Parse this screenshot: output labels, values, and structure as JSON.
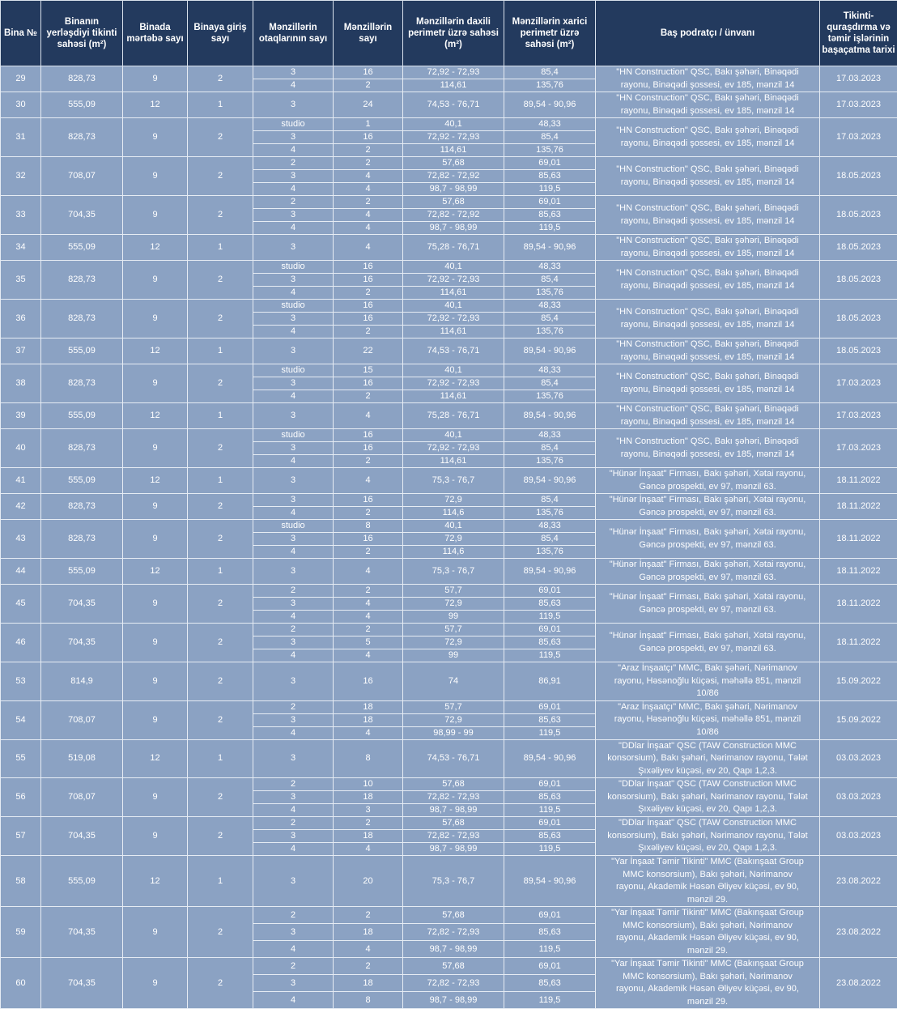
{
  "headers": {
    "no": "Bina №",
    "area": "Binanın yerləşdiyi tikinti sahəsi (m²)",
    "floors": "Binada mərtəbə sayı",
    "entrances": "Binaya giriş sayı",
    "rooms": "Mənzillərin otaqlarının sayı",
    "count": "Mənzillərin sayı",
    "inner": "Mənzillərin daxili perimetr üzrə sahəsi (m²)",
    "outer": "Mənzillərin xarici perimetr üzrə sahəsi (m²)",
    "contractor": "Baş podratçı / ünvanı",
    "date": "Tikinti-quraşdırma və təmir işlərinin başaçatma tarixi"
  },
  "colors": {
    "header_bg": "#233a5e",
    "row_bg": "#8ba2c3",
    "text": "#ffffff"
  },
  "buildings": [
    {
      "no": "29",
      "area": "828,73",
      "floors": "9",
      "entrances": "2",
      "units": [
        [
          "3",
          "16",
          "72,92 - 72,93",
          "85,4"
        ],
        [
          "4",
          "2",
          "114,61",
          "135,76"
        ]
      ],
      "contractor": "\"HN Construction\" QSC, Bakı şəhəri, Binəqədi rayonu, Binəqədi şossesi, ev 185, mənzil 14",
      "date": "17.03.2023"
    },
    {
      "no": "30",
      "area": "555,09",
      "floors": "12",
      "entrances": "1",
      "units": [
        [
          "3",
          "24",
          "74,53 - 76,71",
          "89,54 - 90,96"
        ]
      ],
      "contractor": "\"HN Construction\" QSC, Bakı şəhəri, Binəqədi rayonu, Binəqədi şossesi, ev 185, mənzil 14",
      "date": "17.03.2023"
    },
    {
      "no": "31",
      "area": "828,73",
      "floors": "9",
      "entrances": "2",
      "units": [
        [
          "studio",
          "1",
          "40,1",
          "48,33"
        ],
        [
          "3",
          "16",
          "72,92 - 72,93",
          "85,4"
        ],
        [
          "4",
          "2",
          "114,61",
          "135,76"
        ]
      ],
      "contractor": "\"HN Construction\" QSC, Bakı şəhəri, Binəqədi rayonu, Binəqədi şossesi, ev 185, mənzil 14",
      "date": "17.03.2023"
    },
    {
      "no": "32",
      "area": "708,07",
      "floors": "9",
      "entrances": "2",
      "units": [
        [
          "2",
          "2",
          "57,68",
          "69,01"
        ],
        [
          "3",
          "4",
          "72,82 - 72,92",
          "85,63"
        ],
        [
          "4",
          "4",
          "98,7 - 98,99",
          "119,5"
        ]
      ],
      "contractor": "\"HN Construction\" QSC, Bakı şəhəri, Binəqədi rayonu, Binəqədi şossesi, ev 185, mənzil 14",
      "date": "18.05.2023"
    },
    {
      "no": "33",
      "area": "704,35",
      "floors": "9",
      "entrances": "2",
      "units": [
        [
          "2",
          "2",
          "57,68",
          "69,01"
        ],
        [
          "3",
          "4",
          "72,82 - 72,92",
          "85,63"
        ],
        [
          "4",
          "4",
          "98,7 - 98,99",
          "119,5"
        ]
      ],
      "contractor": "\"HN Construction\" QSC, Bakı şəhəri, Binəqədi rayonu, Binəqədi şossesi, ev 185, mənzil 14",
      "date": "18.05.2023"
    },
    {
      "no": "34",
      "area": "555,09",
      "floors": "12",
      "entrances": "1",
      "units": [
        [
          "3",
          "4",
          "75,28 - 76,71",
          "89,54 - 90,96"
        ]
      ],
      "contractor": "\"HN Construction\" QSC, Bakı şəhəri, Binəqədi rayonu, Binəqədi şossesi, ev 185, mənzil 14",
      "date": "18.05.2023"
    },
    {
      "no": "35",
      "area": "828,73",
      "floors": "9",
      "entrances": "2",
      "units": [
        [
          "studio",
          "16",
          "40,1",
          "48,33"
        ],
        [
          "3",
          "16",
          "72,92 - 72,93",
          "85,4"
        ],
        [
          "4",
          "2",
          "114,61",
          "135,76"
        ]
      ],
      "contractor": "\"HN Construction\" QSC, Bakı şəhəri, Binəqədi rayonu, Binəqədi şossesi, ev 185, mənzil 14",
      "date": "18.05.2023"
    },
    {
      "no": "36",
      "area": "828,73",
      "floors": "9",
      "entrances": "2",
      "units": [
        [
          "studio",
          "16",
          "40,1",
          "48,33"
        ],
        [
          "3",
          "16",
          "72,92 - 72,93",
          "85,4"
        ],
        [
          "4",
          "2",
          "114,61",
          "135,76"
        ]
      ],
      "contractor": "\"HN Construction\" QSC, Bakı şəhəri, Binəqədi rayonu, Binəqədi şossesi, ev 185, mənzil 14",
      "date": "18.05.2023"
    },
    {
      "no": "37",
      "area": "555,09",
      "floors": "12",
      "entrances": "1",
      "units": [
        [
          "3",
          "22",
          "74,53 - 76,71",
          "89,54 - 90,96"
        ]
      ],
      "contractor": "\"HN Construction\" QSC, Bakı şəhəri, Binəqədi rayonu, Binəqədi şossesi, ev 185, mənzil 14",
      "date": "18.05.2023"
    },
    {
      "no": "38",
      "area": "828,73",
      "floors": "9",
      "entrances": "2",
      "units": [
        [
          "studio",
          "15",
          "40,1",
          "48,33"
        ],
        [
          "3",
          "16",
          "72,92 - 72,93",
          "85,4"
        ],
        [
          "4",
          "2",
          "114,61",
          "135,76"
        ]
      ],
      "contractor": "\"HN Construction\" QSC, Bakı şəhəri, Binəqədi rayonu, Binəqədi şossesi, ev 185, mənzil 14",
      "date": "17.03.2023"
    },
    {
      "no": "39",
      "area": "555,09",
      "floors": "12",
      "entrances": "1",
      "units": [
        [
          "3",
          "4",
          "75,28 - 76,71",
          "89,54 - 90,96"
        ]
      ],
      "contractor": "\"HN Construction\" QSC, Bakı şəhəri, Binəqədi rayonu, Binəqədi şossesi, ev 185, mənzil 14",
      "date": "17.03.2023"
    },
    {
      "no": "40",
      "area": "828,73",
      "floors": "9",
      "entrances": "2",
      "units": [
        [
          "studio",
          "16",
          "40,1",
          "48,33"
        ],
        [
          "3",
          "16",
          "72,92 - 72,93",
          "85,4"
        ],
        [
          "4",
          "2",
          "114,61",
          "135,76"
        ]
      ],
      "contractor": "\"HN Construction\" QSC, Bakı şəhəri, Binəqədi rayonu, Binəqədi şossesi, ev 185, mənzil 14",
      "date": "17.03.2023"
    },
    {
      "no": "41",
      "area": "555,09",
      "floors": "12",
      "entrances": "1",
      "units": [
        [
          "3",
          "4",
          "75,3 - 76,7",
          "89,54 - 90,96"
        ]
      ],
      "contractor": "\"Hünər İnşaat\" Firması, Bakı şəhəri, Xətai rayonu, Gəncə prospekti, ev 97, mənzil 63.",
      "date": "18.11.2022"
    },
    {
      "no": "42",
      "area": "828,73",
      "floors": "9",
      "entrances": "2",
      "units": [
        [
          "3",
          "16",
          "72,9",
          "85,4"
        ],
        [
          "4",
          "2",
          "114,6",
          "135,76"
        ]
      ],
      "contractor": "\"Hünər İnşaat\" Firması, Bakı şəhəri, Xətai rayonu, Gəncə prospekti, ev 97, mənzil 63.",
      "date": "18.11.2022"
    },
    {
      "no": "43",
      "area": "828,73",
      "floors": "9",
      "entrances": "2",
      "units": [
        [
          "studio",
          "8",
          "40,1",
          "48,33"
        ],
        [
          "3",
          "16",
          "72,9",
          "85,4"
        ],
        [
          "4",
          "2",
          "114,6",
          "135,76"
        ]
      ],
      "contractor": "\"Hünər İnşaat\" Firması, Bakı şəhəri, Xətai rayonu, Gəncə prospekti, ev 97, mənzil 63.",
      "date": "18.11.2022"
    },
    {
      "no": "44",
      "area": "555,09",
      "floors": "12",
      "entrances": "1",
      "units": [
        [
          "3",
          "4",
          "75,3 - 76,7",
          "89,54 - 90,96"
        ]
      ],
      "contractor": "\"Hünər İnşaat\" Firması, Bakı şəhəri, Xətai rayonu, Gəncə prospekti, ev 97, mənzil 63.",
      "date": "18.11.2022"
    },
    {
      "no": "45",
      "area": "704,35",
      "floors": "9",
      "entrances": "2",
      "units": [
        [
          "2",
          "2",
          "57,7",
          "69,01"
        ],
        [
          "3",
          "4",
          "72,9",
          "85,63"
        ],
        [
          "4",
          "4",
          "99",
          "119,5"
        ]
      ],
      "contractor": "\"Hünər İnşaat\" Firması, Bakı şəhəri, Xətai rayonu, Gəncə prospekti, ev 97, mənzil 63.",
      "date": "18.11.2022"
    },
    {
      "no": "46",
      "area": "704,35",
      "floors": "9",
      "entrances": "2",
      "units": [
        [
          "2",
          "2",
          "57,7",
          "69,01"
        ],
        [
          "3",
          "5",
          "72,9",
          "85,63"
        ],
        [
          "4",
          "4",
          "99",
          "119,5"
        ]
      ],
      "contractor": "\"Hünər İnşaat\" Firması, Bakı şəhəri, Xətai rayonu, Gəncə prospekti, ev 97, mənzil 63.",
      "date": "18.11.2022"
    },
    {
      "no": "53",
      "area": "814,9",
      "floors": "9",
      "entrances": "2",
      "units": [
        [
          "3",
          "16",
          "74",
          "86,91"
        ]
      ],
      "contractor": "\"Araz İnşaatçı\" MMC, Bakı şəhəri, Nərimanov rayonu, Həsənoğlu küçəsi, məhəllə 851, mənzil 10/86",
      "date": "15.09.2022"
    },
    {
      "no": "54",
      "area": "708,07",
      "floors": "9",
      "entrances": "2",
      "units": [
        [
          "2",
          "18",
          "57,7",
          "69,01"
        ],
        [
          "3",
          "18",
          "72,9",
          "85,63"
        ],
        [
          "4",
          "4",
          "98,99 - 99",
          "119,5"
        ]
      ],
      "contractor": "\"Araz İnşaatçı\" MMC, Bakı şəhəri, Nərimanov rayonu, Həsənoğlu küçəsi, məhəllə 851, mənzil 10/86",
      "date": "15.09.2022"
    },
    {
      "no": "55",
      "area": "519,08",
      "floors": "12",
      "entrances": "1",
      "units": [
        [
          "3",
          "8",
          "74,53 - 76,71",
          "89,54 - 90,96"
        ]
      ],
      "contractor": "\"DDlar İnşaat\" QSC (TAW Construction MMC konsorsium), Bakı şəhəri, Nərimanov rayonu, Tələt Şıxəliyev küçəsi, ev 20, Qapı 1,2,3.",
      "date": "03.03.2023"
    },
    {
      "no": "56",
      "area": "708,07",
      "floors": "9",
      "entrances": "2",
      "units": [
        [
          "2",
          "10",
          "57,68",
          "69,01"
        ],
        [
          "3",
          "18",
          "72,82 - 72,93",
          "85,63"
        ],
        [
          "4",
          "3",
          "98,7 - 98,99",
          "119,5"
        ]
      ],
      "contractor": "\"DDlar İnşaat\" QSC (TAW Construction MMC konsorsium), Bakı şəhəri, Nərimanov rayonu, Tələt Şıxəliyev küçəsi, ev 20, Qapı 1,2,3.",
      "date": "03.03.2023"
    },
    {
      "no": "57",
      "area": "704,35",
      "floors": "9",
      "entrances": "2",
      "units": [
        [
          "2",
          "2",
          "57,68",
          "69,01"
        ],
        [
          "3",
          "18",
          "72,82 - 72,93",
          "85,63"
        ],
        [
          "4",
          "4",
          "98,7 - 98,99",
          "119,5"
        ]
      ],
      "contractor": "\"DDlar İnşaat\" QSC (TAW Construction MMC konsorsium), Bakı şəhəri, Nərimanov rayonu, Tələt Şıxəliyev küçəsi, ev 20, Qapı 1,2,3.",
      "date": "03.03.2023"
    },
    {
      "no": "58",
      "area": "555,09",
      "floors": "12",
      "entrances": "1",
      "units": [
        [
          "3",
          "20",
          "75,3 - 76,7",
          "89,54 - 90,96"
        ]
      ],
      "contractor": "\"Yar İnşaat Təmir Tikinti\" MMC (Bakınşaat Group MMC konsorsium), Bakı şəhəri, Nərimanov rayonu, Akademik Həsən Əliyev küçəsi, ev 90, mənzil 29.",
      "date": "23.08.2022"
    },
    {
      "no": "59",
      "area": "704,35",
      "floors": "9",
      "entrances": "2",
      "units": [
        [
          "2",
          "2",
          "57,68",
          "69,01"
        ],
        [
          "3",
          "18",
          "72,82 - 72,93",
          "85,63"
        ],
        [
          "4",
          "4",
          "98,7 - 98,99",
          "119,5"
        ]
      ],
      "contractor": "\"Yar İnşaat Təmir Tikinti\" MMC (Bakınşaat Group MMC konsorsium), Bakı şəhəri, Nərimanov rayonu, Akademik Həsən Əliyev küçəsi, ev 90, mənzil 29.",
      "date": "23.08.2022"
    },
    {
      "no": "60",
      "area": "704,35",
      "floors": "9",
      "entrances": "2",
      "units": [
        [
          "2",
          "2",
          "57,68",
          "69,01"
        ],
        [
          "3",
          "18",
          "72,82 - 72,93",
          "85,63"
        ],
        [
          "4",
          "8",
          "98,7 - 98,99",
          "119,5"
        ]
      ],
      "contractor": "\"Yar İnşaat Təmir Tikinti\" MMC (Bakınşaat Group MMC konsorsium), Bakı şəhəri, Nərimanov rayonu, Akademik Həsən Əliyev küçəsi, ev 90, mənzil 29.",
      "date": "23.08.2022"
    }
  ]
}
